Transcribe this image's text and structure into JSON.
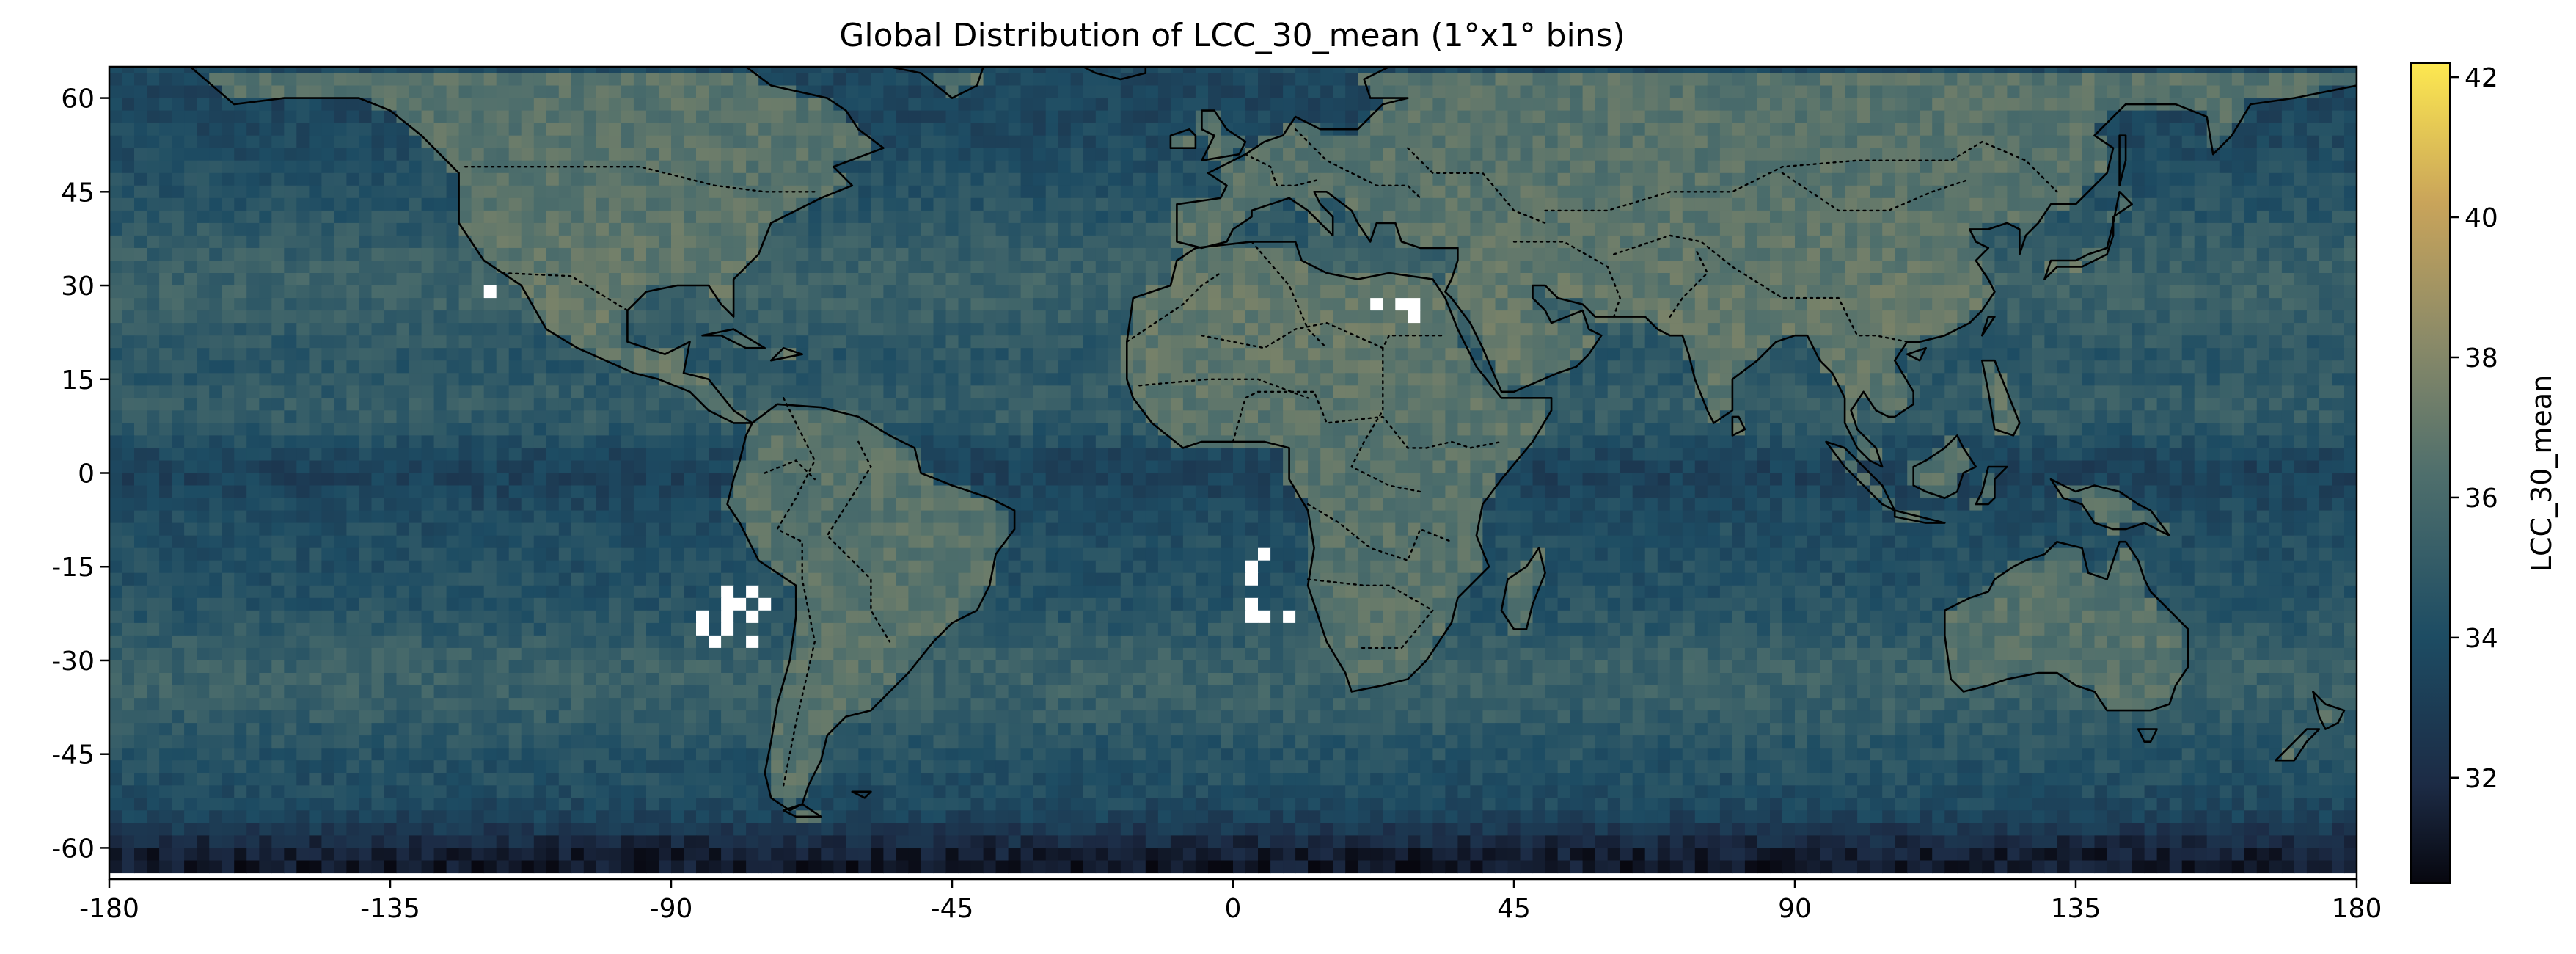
{
  "chart_data": {
    "type": "heatmap",
    "title": "Global Distribution of LCC_30_mean (1°x1° bins)",
    "xlabel": "",
    "ylabel": "",
    "x_range": [
      -180,
      180
    ],
    "y_range": [
      -65,
      65
    ],
    "bin_size_deg": 1,
    "x_ticks": [
      -180,
      -135,
      -90,
      -45,
      0,
      45,
      90,
      135,
      180
    ],
    "y_ticks": [
      60,
      45,
      30,
      15,
      0,
      -15,
      -30,
      -45,
      -60
    ],
    "colorbar": {
      "label": "LCC_30_mean",
      "range": [
        30.5,
        42.2
      ],
      "ticks": [
        32,
        34,
        36,
        38,
        40,
        42
      ],
      "colormap": "cividis-like (black → dark blue → teal → olive → yellow)",
      "stops": [
        "#07070f",
        "#1c2b45",
        "#1d4c63",
        "#4f6f6c",
        "#8a8a68",
        "#c9a45a",
        "#fde850"
      ]
    },
    "missing_color": "#ffffff",
    "coastlines": "solid black",
    "borders": "dotted black",
    "regions_note": "higher values over continents and subtropical ocean bands; lowest values south of 55°S; missing bins off Peru/Chile, Namibia, and Sahara"
  }
}
